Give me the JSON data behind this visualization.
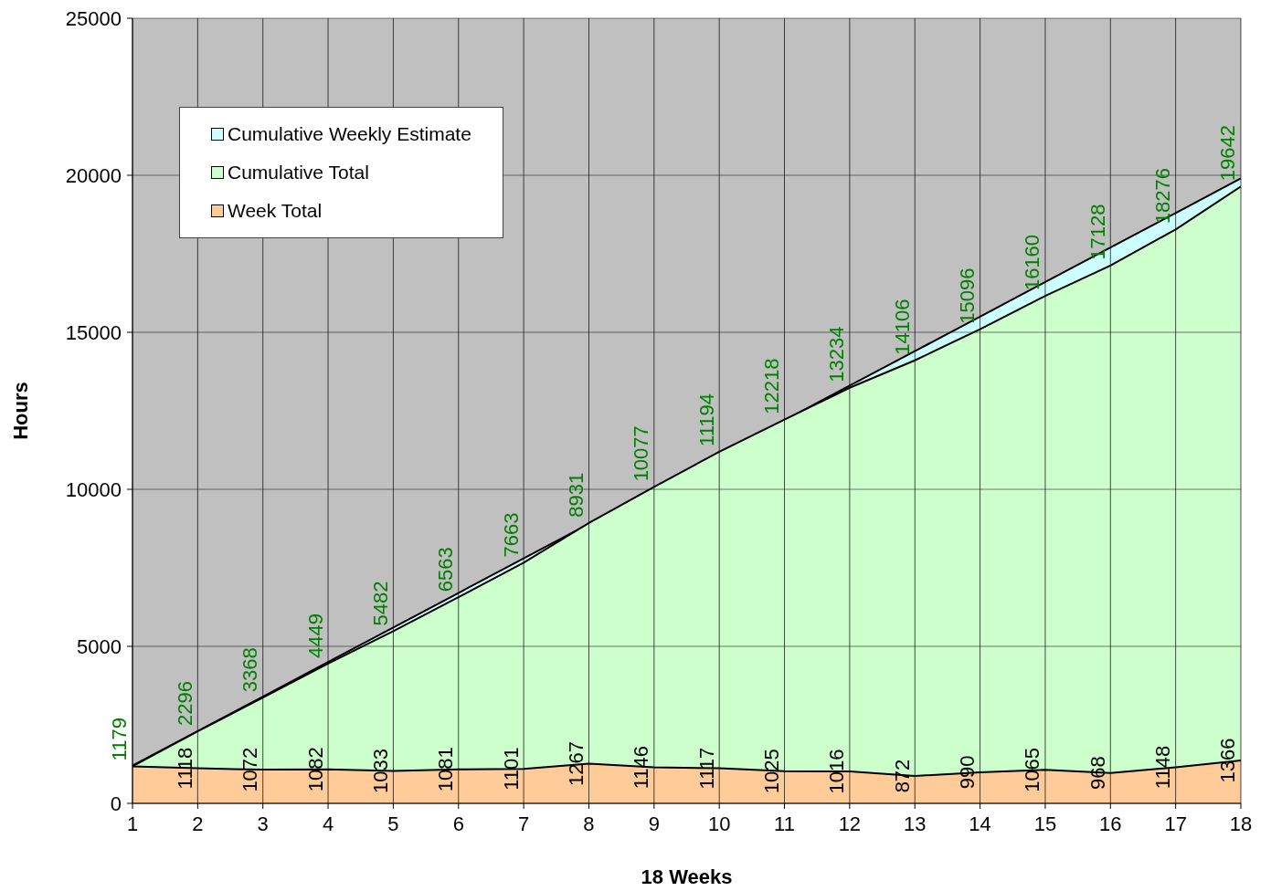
{
  "chart_data": {
    "type": "area",
    "xlabel": "18 Weeks",
    "ylabel": "Hours",
    "x": [
      1,
      2,
      3,
      4,
      5,
      6,
      7,
      8,
      9,
      10,
      11,
      12,
      13,
      14,
      15,
      16,
      17,
      18
    ],
    "xlim": [
      1,
      18
    ],
    "xticks": [
      1,
      2,
      3,
      4,
      5,
      6,
      7,
      8,
      9,
      10,
      11,
      12,
      13,
      14,
      15,
      16,
      17,
      18
    ],
    "ylim": [
      0,
      25000
    ],
    "yticks": [
      0,
      5000,
      10000,
      15000,
      20000,
      25000
    ],
    "grid": true,
    "legend": "top left",
    "series": [
      {
        "name": "Cumulative Weekly Estimate",
        "color": "#ccffff",
        "values": [
          1200,
          2300,
          3400,
          4500,
          5600,
          6700,
          7800,
          8900,
          10000,
          11100,
          12200,
          13300,
          14400,
          15500,
          16600,
          17700,
          18800,
          19900
        ]
      },
      {
        "name": "Cumulative Total",
        "color": "#ccffcc",
        "values": [
          1179,
          2296,
          3368,
          4449,
          5482,
          6563,
          7663,
          8931,
          10077,
          11194,
          12218,
          13234,
          14106,
          15096,
          16160,
          17128,
          18276,
          19642
        ],
        "value_labels": [
          "1179",
          "2296",
          "3368",
          "4449",
          "5482",
          "6563",
          "7663",
          "8931",
          "10077",
          "11194",
          "12218",
          "13234",
          "14106",
          "15096",
          "16160",
          "17128",
          "18276",
          "19642"
        ]
      },
      {
        "name": "Week Total",
        "color": "#ffcc99",
        "values": [
          1179,
          1118,
          1072,
          1082,
          1033,
          1081,
          1101,
          1267,
          1146,
          1117,
          1025,
          1016,
          872,
          990,
          1065,
          968,
          1148,
          1366
        ],
        "value_labels": [
          null,
          "1118",
          "1072",
          "1082",
          "1033",
          "1081",
          "1101",
          "1267",
          "1146",
          "1117",
          "1025",
          "1016",
          "872",
          "990",
          "1065",
          "968",
          "1148",
          "1366"
        ]
      }
    ]
  }
}
